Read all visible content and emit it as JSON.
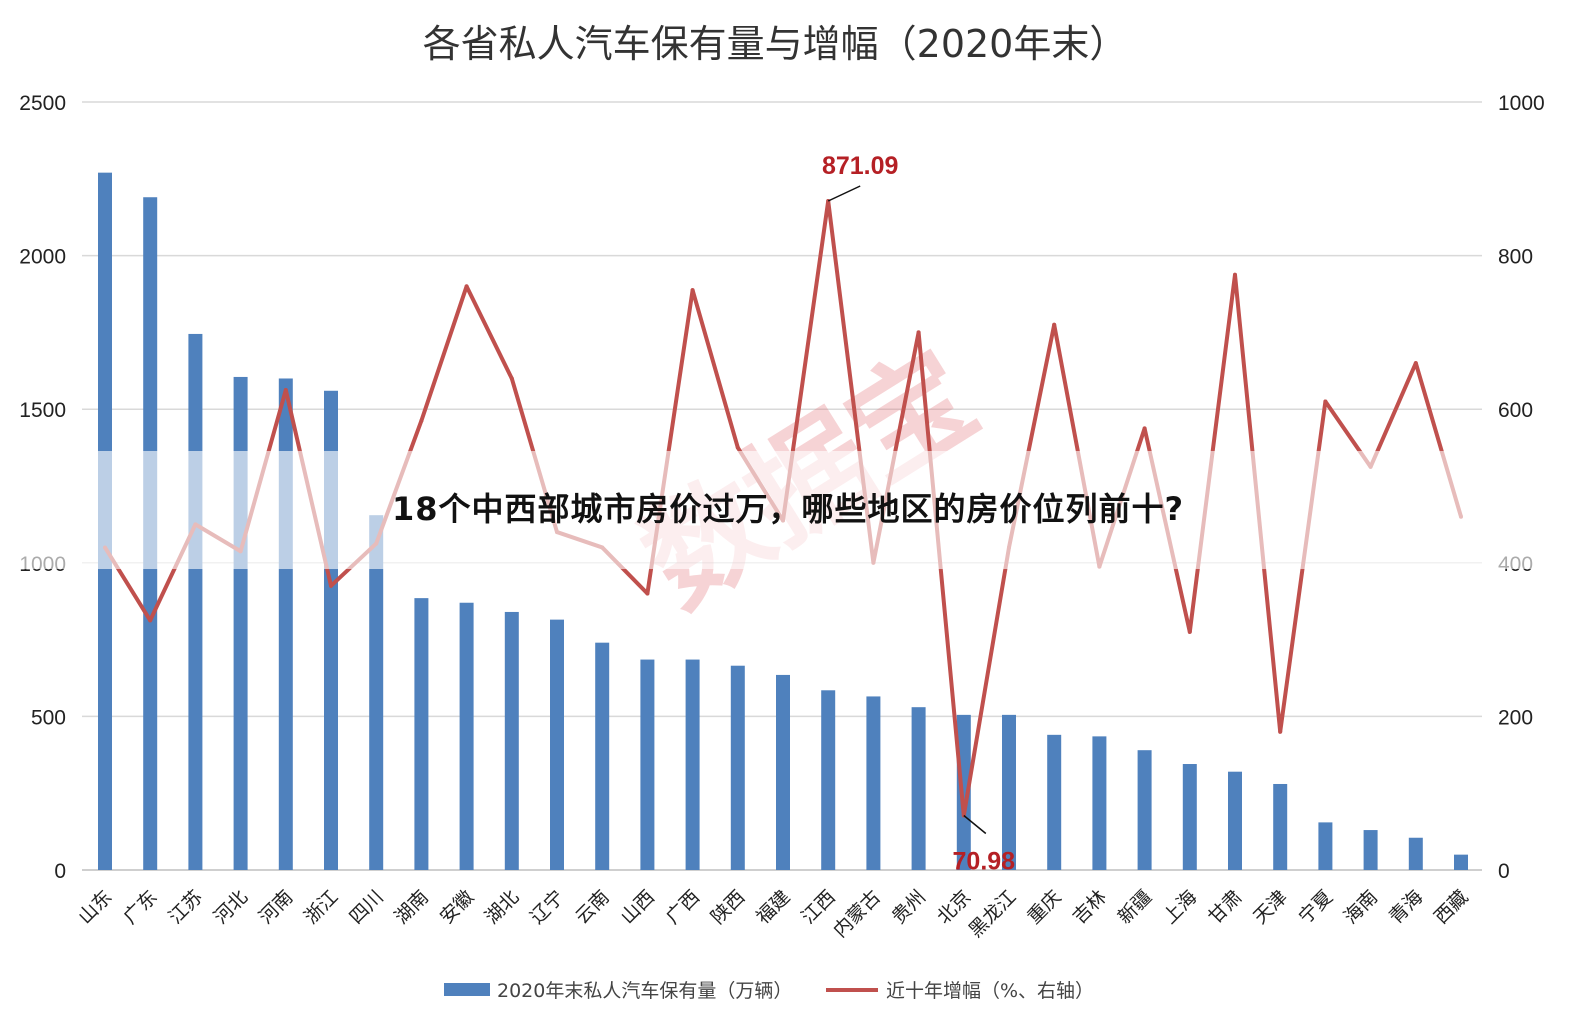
{
  "overlay": {
    "headline": "18个中西部城市房价过万，哪些地区的房价位列前十?"
  },
  "watermark": "数据宝",
  "chart_data": {
    "type": "bar",
    "title": "各省私人汽车保有量与增幅（2020年末）",
    "categories": [
      "山东",
      "广东",
      "江苏",
      "河北",
      "河南",
      "浙江",
      "四川",
      "湖南",
      "安徽",
      "湖北",
      "辽宁",
      "云南",
      "山西",
      "广西",
      "陕西",
      "福建",
      "江西",
      "内蒙古",
      "贵州",
      "北京",
      "黑龙江",
      "重庆",
      "吉林",
      "新疆",
      "上海",
      "甘肃",
      "天津",
      "宁夏",
      "海南",
      "青海",
      "西藏"
    ],
    "y_left": {
      "ylim": [
        0,
        2500
      ],
      "ticks": [
        "0",
        "500",
        "1000",
        "1500",
        "2000",
        "2500"
      ]
    },
    "y_right": {
      "ylim": [
        0,
        1000
      ],
      "ticks": [
        "0",
        "200",
        "400",
        "600",
        "800",
        "1000"
      ]
    },
    "grid": true,
    "legend_position": "bottom",
    "series": [
      {
        "name": "2020年末私人汽车保有量（万辆）",
        "type": "bar",
        "axis": "left",
        "color": "#4f81bd",
        "values": [
          2270,
          2190,
          1745,
          1605,
          1600,
          1560,
          1155,
          885,
          870,
          840,
          815,
          740,
          685,
          685,
          665,
          635,
          585,
          565,
          530,
          505,
          505,
          440,
          435,
          390,
          345,
          320,
          280,
          155,
          130,
          105,
          50
        ]
      },
      {
        "name": "近十年增幅（%、右轴）",
        "type": "line",
        "axis": "right",
        "color": "#c0504d",
        "values": [
          420,
          325,
          450,
          415,
          625,
          370,
          425,
          585,
          760,
          640,
          440,
          420,
          360,
          755,
          550,
          455,
          871.09,
          400,
          700,
          70.98,
          420,
          710,
          395,
          575,
          310,
          775,
          180,
          610,
          525,
          660,
          460
        ]
      }
    ],
    "annotations": [
      {
        "category": "江西",
        "text": "871.09"
      },
      {
        "category": "北京",
        "text": "70.98"
      }
    ]
  }
}
